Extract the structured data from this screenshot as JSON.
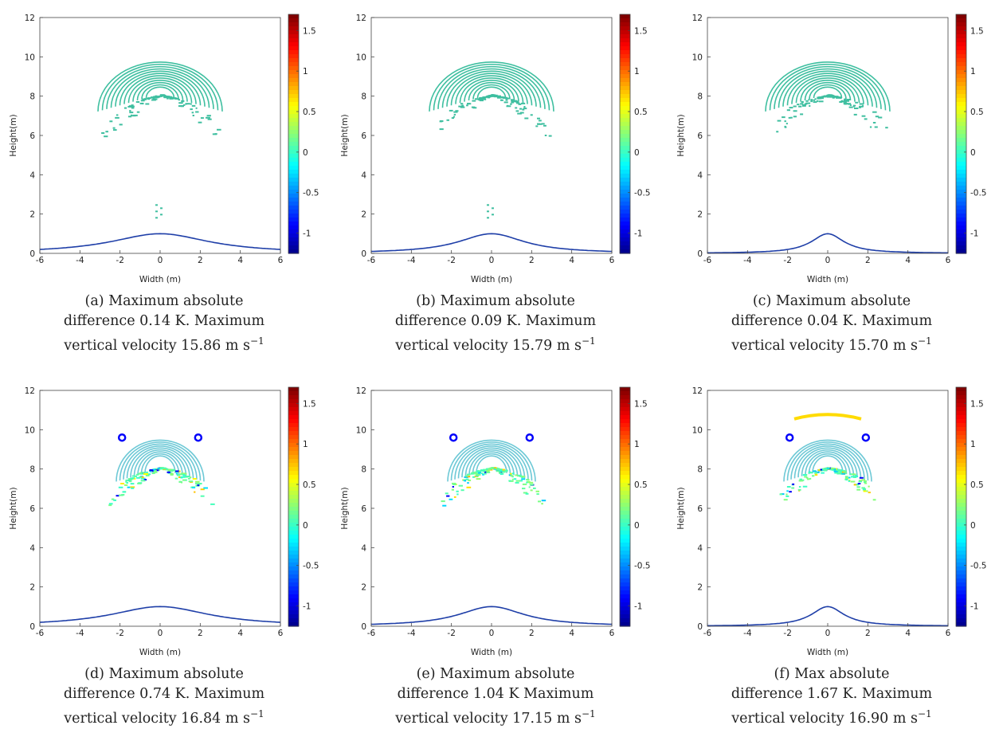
{
  "chart_data": [
    {
      "type": "heatmap",
      "panel": "a",
      "xlabel": "Width (m)",
      "ylabel": "Height(m)",
      "xlim": [
        -6,
        6
      ],
      "ylim": [
        0,
        12
      ],
      "xticks": [
        "-6",
        "-4",
        "-2",
        "0",
        "2",
        "4",
        "6"
      ],
      "yticks": [
        "0",
        "2",
        "4",
        "6",
        "8",
        "10",
        "12"
      ],
      "colorbar": {
        "range": [
          -1.25,
          1.7
        ],
        "ticks": [
          "1.5",
          "1",
          "0.5",
          "0",
          "-0.5",
          "-1"
        ]
      },
      "mountain": {
        "height": 1.0,
        "halfwidth": 3.0
      },
      "max_abs_difference_K": 0.14,
      "max_vertical_velocity_ms": 15.86,
      "caption_lines": [
        "(a) Maximum absolute",
        "difference 0.14 K. Maximum",
        "vertical velocity 15.86 m s"
      ],
      "caption_exp": "−1"
    },
    {
      "type": "heatmap",
      "panel": "b",
      "xlabel": "Width (m)",
      "ylabel": "Height(m)",
      "xlim": [
        -6,
        6
      ],
      "ylim": [
        0,
        12
      ],
      "xticks": [
        "-6",
        "-4",
        "-2",
        "0",
        "2",
        "4",
        "6"
      ],
      "yticks": [
        "0",
        "2",
        "4",
        "6",
        "8",
        "10",
        "12"
      ],
      "colorbar": {
        "range": [
          -1.25,
          1.7
        ],
        "ticks": [
          "1.5",
          "1",
          "0.5",
          "0",
          "-0.5",
          "-1"
        ]
      },
      "mountain": {
        "height": 1.0,
        "halfwidth": 2.0
      },
      "max_abs_difference_K": 0.09,
      "max_vertical_velocity_ms": 15.79,
      "caption_lines": [
        "(b) Maximum absolute",
        "difference 0.09 K. Maximum",
        "vertical velocity 15.79 m s"
      ],
      "caption_exp": "−1"
    },
    {
      "type": "heatmap",
      "panel": "c",
      "xlabel": "Width (m)",
      "ylabel": "Height(m)",
      "xlim": [
        -6,
        6
      ],
      "ylim": [
        0,
        12
      ],
      "xticks": [
        "-6",
        "-4",
        "-2",
        "0",
        "2",
        "4",
        "6"
      ],
      "yticks": [
        "0",
        "2",
        "4",
        "6",
        "8",
        "10",
        "12"
      ],
      "colorbar": {
        "range": [
          -1.25,
          1.7
        ],
        "ticks": [
          "1.5",
          "1",
          "0.5",
          "0",
          "-0.5",
          "-1"
        ]
      },
      "mountain": {
        "height": 1.0,
        "halfwidth": 1.0
      },
      "max_abs_difference_K": 0.04,
      "max_vertical_velocity_ms": 15.7,
      "caption_lines": [
        "(c) Maximum absolute",
        "difference 0.04 K. Maximum",
        "vertical velocity 15.70 m s"
      ],
      "caption_exp": "−1"
    },
    {
      "type": "heatmap",
      "panel": "d",
      "xlabel": "Width (m)",
      "ylabel": "Height(m)",
      "xlim": [
        -6,
        6
      ],
      "ylim": [
        0,
        12
      ],
      "xticks": [
        "-6",
        "-4",
        "-2",
        "0",
        "2",
        "4",
        "6"
      ],
      "yticks": [
        "0",
        "2",
        "4",
        "6",
        "8",
        "10",
        "12"
      ],
      "colorbar": {
        "range": [
          -1.25,
          1.7
        ],
        "ticks": [
          "1.5",
          "1",
          "0.5",
          "0",
          "-0.5",
          "-1"
        ]
      },
      "mountain": {
        "height": 1.0,
        "halfwidth": 3.0
      },
      "max_abs_difference_K": 0.74,
      "max_vertical_velocity_ms": 16.84,
      "caption_lines": [
        "(d) Maximum absolute",
        "difference 0.74 K. Maximum",
        "vertical velocity 16.84 m s"
      ],
      "caption_exp": "−1"
    },
    {
      "type": "heatmap",
      "panel": "e",
      "xlabel": "Width (m)",
      "ylabel": "Height(m)",
      "xlim": [
        -6,
        6
      ],
      "ylim": [
        0,
        12
      ],
      "xticks": [
        "-6",
        "-4",
        "-2",
        "0",
        "2",
        "4",
        "6"
      ],
      "yticks": [
        "0",
        "2",
        "4",
        "6",
        "8",
        "10",
        "12"
      ],
      "colorbar": {
        "range": [
          -1.25,
          1.7
        ],
        "ticks": [
          "1.5",
          "1",
          "0.5",
          "0",
          "-0.5",
          "-1"
        ]
      },
      "mountain": {
        "height": 1.0,
        "halfwidth": 2.0
      },
      "max_abs_difference_K": 1.04,
      "max_vertical_velocity_ms": 17.15,
      "caption_lines": [
        "(e) Maximum absolute",
        "difference 1.04 K Maximum",
        "vertical velocity 17.15 m s"
      ],
      "caption_exp": "−1"
    },
    {
      "type": "heatmap",
      "panel": "f",
      "xlabel": "Width (m)",
      "ylabel": "Height(m)",
      "xlim": [
        -6,
        6
      ],
      "ylim": [
        0,
        12
      ],
      "xticks": [
        "-6",
        "-4",
        "-2",
        "0",
        "2",
        "4",
        "6"
      ],
      "yticks": [
        "0",
        "2",
        "4",
        "6",
        "8",
        "10",
        "12"
      ],
      "colorbar": {
        "range": [
          -1.25,
          1.7
        ],
        "ticks": [
          "1.5",
          "1",
          "0.5",
          "0",
          "-0.5",
          "-1"
        ]
      },
      "mountain": {
        "height": 1.0,
        "halfwidth": 1.0
      },
      "max_abs_difference_K": 1.67,
      "max_vertical_velocity_ms": 16.9,
      "caption_lines": [
        "(f) Max absolute",
        "difference 1.67 K. Maximum",
        "vertical velocity 16.90 m s"
      ],
      "caption_exp": "−1"
    }
  ]
}
